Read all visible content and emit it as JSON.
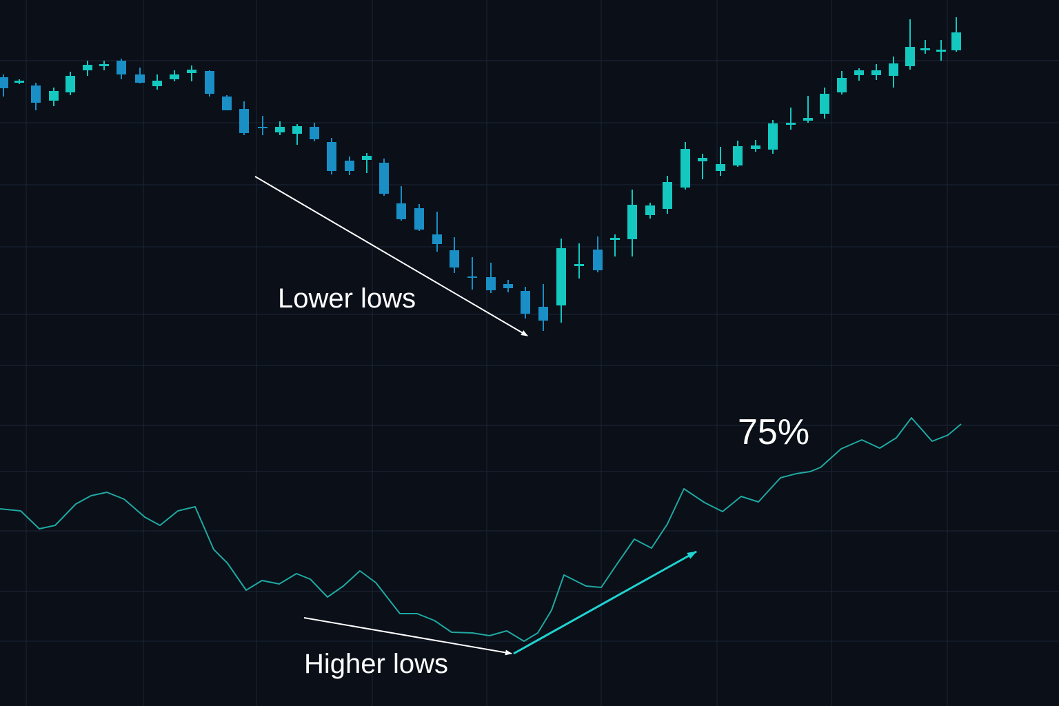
{
  "chart_data": [
    {
      "type": "candlestick",
      "xlim": [
        0,
        153.6
      ],
      "ylim": [
        0,
        60
      ],
      "up_color": "#14c8c0",
      "down_color": "#1a8fc6",
      "x": [
        0.5,
        2.8,
        5.2,
        7.8,
        10.2,
        12.7,
        15.1,
        17.6,
        20.3,
        22.8,
        25.3,
        27.8,
        30.4,
        32.9,
        35.4,
        38.1,
        40.6,
        43.1,
        45.6,
        48.1,
        50.7,
        53.2,
        55.7,
        58.2,
        60.8,
        63.4,
        65.9,
        68.5,
        71.2,
        73.7,
        76.2,
        78.8,
        81.4,
        84.0,
        86.7,
        89.2,
        91.7,
        94.3,
        96.8,
        99.4,
        101.9,
        104.5,
        107.0,
        109.6,
        112.1,
        114.7,
        117.2,
        119.6,
        122.1,
        124.6,
        127.1,
        129.6,
        132.0,
        134.2,
        136.5,
        138.7
      ],
      "open": [
        48.8,
        48.0,
        47.6,
        45.4,
        46.6,
        49.8,
        50.4,
        51.2,
        49.2,
        47.5,
        48.5,
        49.4,
        49.7,
        46.0,
        44.2,
        41.6,
        40.8,
        40.6,
        41.6,
        39.4,
        36.7,
        36.8,
        36.4,
        30.5,
        29.8,
        26.0,
        23.7,
        19.9,
        19.8,
        18.8,
        17.8,
        15.5,
        15.7,
        21.4,
        23.8,
        25.2,
        25.3,
        28.8,
        29.7,
        32.8,
        36.6,
        35.2,
        36.0,
        38.4,
        38.3,
        41.9,
        42.5,
        43.5,
        46.6,
        49.1,
        49.1,
        49.0,
        50.4,
        52.7,
        52.5,
        52.7
      ],
      "high": [
        49.2,
        48.5,
        48.0,
        47.3,
        49.6,
        51.2,
        51.2,
        51.5,
        50.2,
        49.2,
        49.8,
        50.5,
        49.8,
        46.2,
        45.3,
        43.2,
        42.4,
        42.0,
        42.2,
        40.0,
        37.3,
        37.8,
        37.0,
        33.0,
        30.4,
        29.3,
        25.6,
        22.7,
        21.9,
        19.4,
        18.4,
        18.8,
        25.4,
        24.7,
        25.7,
        26.0,
        32.5,
        30.6,
        34.5,
        39.4,
        37.7,
        38.7,
        39.6,
        39.7,
        42.6,
        44.4,
        46.1,
        47.3,
        49.7,
        50.1,
        50.7,
        51.8,
        57.2,
        54.2,
        54.2,
        57.5
      ],
      "low": [
        46.0,
        47.8,
        44.0,
        44.6,
        46.2,
        49.0,
        49.8,
        48.5,
        47.9,
        47.0,
        48.2,
        48.2,
        46.0,
        44.0,
        40.4,
        40.4,
        40.4,
        39.0,
        39.5,
        34.7,
        34.6,
        34.9,
        31.6,
        28.0,
        26.5,
        23.5,
        20.4,
        18.0,
        17.5,
        17.6,
        13.8,
        12.0,
        13.2,
        19.6,
        20.5,
        22.8,
        22.8,
        28.3,
        29.0,
        32.5,
        34.0,
        34.5,
        35.8,
        38.0,
        37.7,
        41.2,
        42.2,
        42.8,
        46.3,
        48.3,
        48.4,
        47.3,
        49.9,
        52.2,
        51.2,
        52.5
      ],
      "close": [
        47.2,
        48.3,
        45.1,
        46.8,
        49.0,
        50.6,
        50.7,
        49.2,
        48.0,
        48.3,
        49.2,
        49.9,
        46.4,
        44.0,
        40.7,
        41.4,
        41.6,
        41.7,
        39.8,
        35.2,
        35.2,
        37.4,
        31.9,
        28.2,
        26.7,
        24.6,
        21.2,
        19.7,
        17.9,
        18.2,
        14.5,
        13.5,
        24.0,
        21.7,
        20.8,
        25.5,
        30.3,
        30.2,
        33.6,
        38.4,
        37.1,
        36.2,
        38.8,
        38.9,
        42.1,
        42.2,
        42.9,
        46.4,
        48.7,
        49.8,
        49.8,
        50.8,
        53.2,
        53.0,
        52.8,
        55.3
      ]
    },
    {
      "type": "line",
      "xlim": [
        0,
        153.6
      ],
      "ylim": [
        0,
        100
      ],
      "color": "#1fa9a2",
      "x": [
        0,
        3.0,
        5.7,
        8.0,
        11.0,
        13.2,
        15.5,
        18.0,
        21.0,
        23.2,
        25.8,
        28.3,
        31.0,
        33.0,
        35.7,
        38.0,
        40.5,
        43.0,
        45.0,
        47.5,
        49.8,
        52.2,
        54.5,
        58.0,
        60.5,
        63.0,
        65.5,
        68.5,
        71.0,
        73.5,
        76.0,
        78.0,
        80.0,
        81.8,
        85.0,
        87.2,
        89.5,
        92.0,
        94.5,
        96.8,
        99.2,
        102.2,
        104.8,
        107.5,
        110.0,
        113.2,
        115.5,
        117.5,
        119.0,
        122.0,
        125.0,
        127.6,
        130.0,
        132.2,
        135.2,
        137.5,
        139.4
      ],
      "values": [
        26.2,
        25.9,
        23.3,
        23.8,
        26.9,
        28.1,
        28.6,
        27.6,
        25.0,
        23.8,
        25.9,
        26.5,
        20.3,
        18.3,
        14.4,
        15.8,
        15.3,
        16.8,
        16.0,
        13.4,
        15.0,
        17.2,
        15.5,
        11.0,
        11.0,
        10.0,
        8.3,
        8.2,
        7.8,
        8.5,
        7.0,
        8.2,
        11.5,
        16.6,
        15.0,
        14.8,
        18.2,
        21.8,
        20.5,
        24.0,
        29.1,
        27.1,
        25.8,
        28.0,
        27.2,
        30.7,
        31.3,
        31.6,
        32.2,
        34.9,
        36.2,
        35.0,
        36.5,
        39.4,
        36.0,
        36.9,
        38.5
      ],
      "annotations": [
        "Lower lows",
        "Higher lows",
        "75%"
      ]
    }
  ]
}
